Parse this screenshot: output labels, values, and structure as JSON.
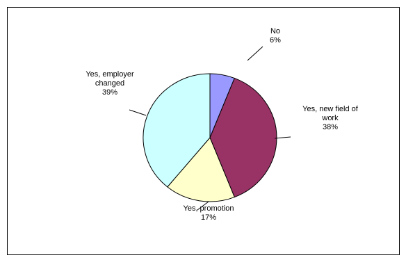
{
  "chart_data": {
    "type": "pie",
    "slices": [
      {
        "label_lines": [
          "No"
        ],
        "percent_label": "6%",
        "value": 6,
        "color": "#9999FF"
      },
      {
        "label_lines": [
          "Yes, new field of",
          "work"
        ],
        "percent_label": "38%",
        "value": 38,
        "color": "#993366"
      },
      {
        "label_lines": [
          "Yes, promotion"
        ],
        "percent_label": "17%",
        "value": 17,
        "color": "#FFFFCC"
      },
      {
        "label_lines": [
          "Yes, employer",
          "changed"
        ],
        "percent_label": "39%",
        "value": 39,
        "color": "#CCFFFF"
      }
    ],
    "start_angle_deg": 0,
    "direction": "clockwise"
  }
}
